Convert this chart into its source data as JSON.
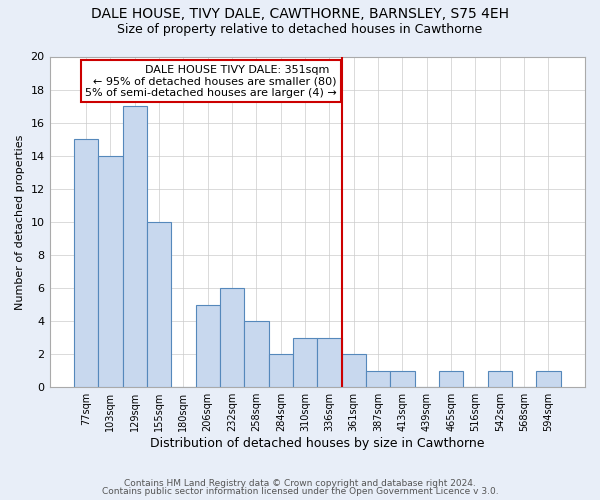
{
  "title": "DALE HOUSE, TIVY DALE, CAWTHORNE, BARNSLEY, S75 4EH",
  "subtitle": "Size of property relative to detached houses in Cawthorne",
  "xlabel": "Distribution of detached houses by size in Cawthorne",
  "ylabel": "Number of detached properties",
  "footer_line1": "Contains HM Land Registry data © Crown copyright and database right 2024.",
  "footer_line2": "Contains public sector information licensed under the Open Government Licence v 3.0.",
  "annotation_title": "DALE HOUSE TIVY DALE: 351sqm",
  "annotation_line1": "← 95% of detached houses are smaller (80)",
  "annotation_line2": "5% of semi-detached houses are larger (4) →",
  "bar_categories": [
    "77sqm",
    "103sqm",
    "129sqm",
    "155sqm",
    "180sqm",
    "206sqm",
    "232sqm",
    "258sqm",
    "284sqm",
    "310sqm",
    "336sqm",
    "361sqm",
    "387sqm",
    "413sqm",
    "439sqm",
    "465sqm",
    "516sqm",
    "542sqm",
    "568sqm",
    "594sqm"
  ],
  "bar_values": [
    15,
    14,
    17,
    10,
    0,
    5,
    6,
    4,
    2,
    3,
    3,
    2,
    1,
    1,
    0,
    1,
    0,
    1,
    0,
    1
  ],
  "bar_color": "#c8d8ee",
  "bar_edge_color": "#5588bb",
  "vline_index": 11,
  "vline_color": "#cc0000",
  "annotation_box_color": "#cc0000",
  "annotation_bg": "white",
  "ylim": [
    0,
    20
  ],
  "yticks": [
    0,
    2,
    4,
    6,
    8,
    10,
    12,
    14,
    16,
    18,
    20
  ],
  "plot_bg_color": "white",
  "fig_bg_color": "#e8eef8",
  "grid_color": "#cccccc",
  "title_fontsize": 10,
  "subtitle_fontsize": 9,
  "annotation_fontsize": 8
}
